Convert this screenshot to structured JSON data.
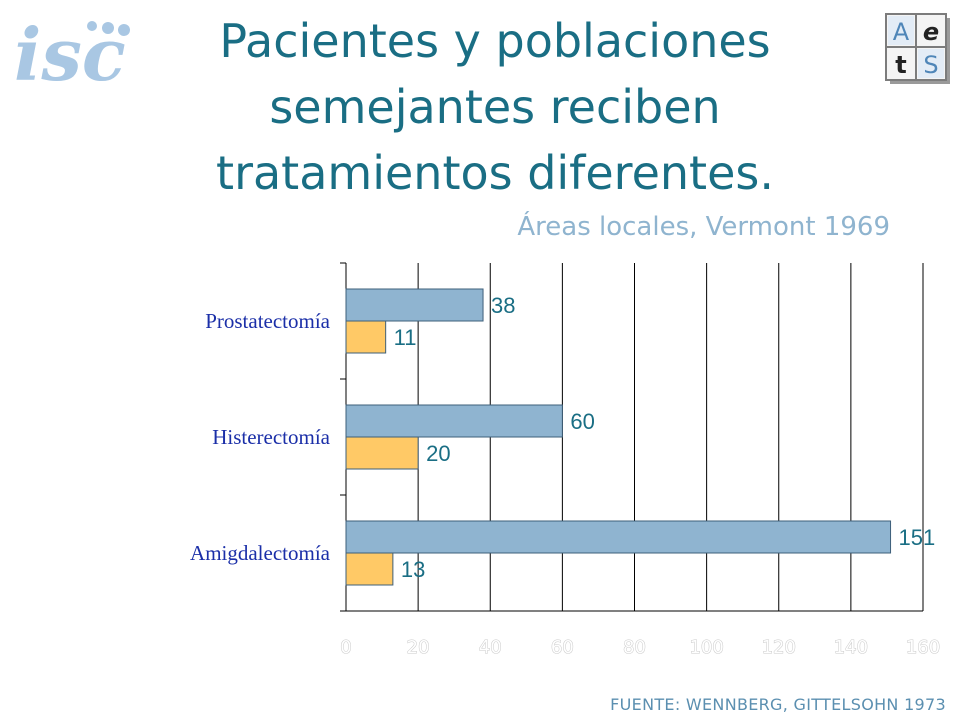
{
  "header": {
    "title_lines": [
      "Pacientes  y poblaciones",
      "semejantes reciben",
      "tratamientos diferentes."
    ],
    "subtitle": "Áreas locales, Vermont 1969",
    "logo_left_text": "isc",
    "logo_right_letters": [
      "A",
      "e",
      "t",
      "S"
    ]
  },
  "footer": {
    "source": "FUENTE: WENNBERG, GITTELSOHN 1973"
  },
  "colors": {
    "accent": "#1a6e84",
    "series_blue": "#8fb4d0",
    "series_orange": "#ffc966",
    "category": "#1b2fa8"
  },
  "chart_data": {
    "type": "bar",
    "orientation": "horizontal",
    "categories": [
      "Prostatectomía",
      "Histerectomía",
      "Amigdalectomía"
    ],
    "series": [
      {
        "values": [
          38,
          60,
          151
        ],
        "color": "#8fb4d0"
      },
      {
        "values": [
          11,
          20,
          13
        ],
        "color": "#ffc966"
      }
    ],
    "xlim": [
      0,
      160
    ],
    "xticks": [
      "0",
      "20",
      "40",
      "60",
      "80",
      "100",
      "120",
      "140",
      "160"
    ],
    "grid": true
  }
}
